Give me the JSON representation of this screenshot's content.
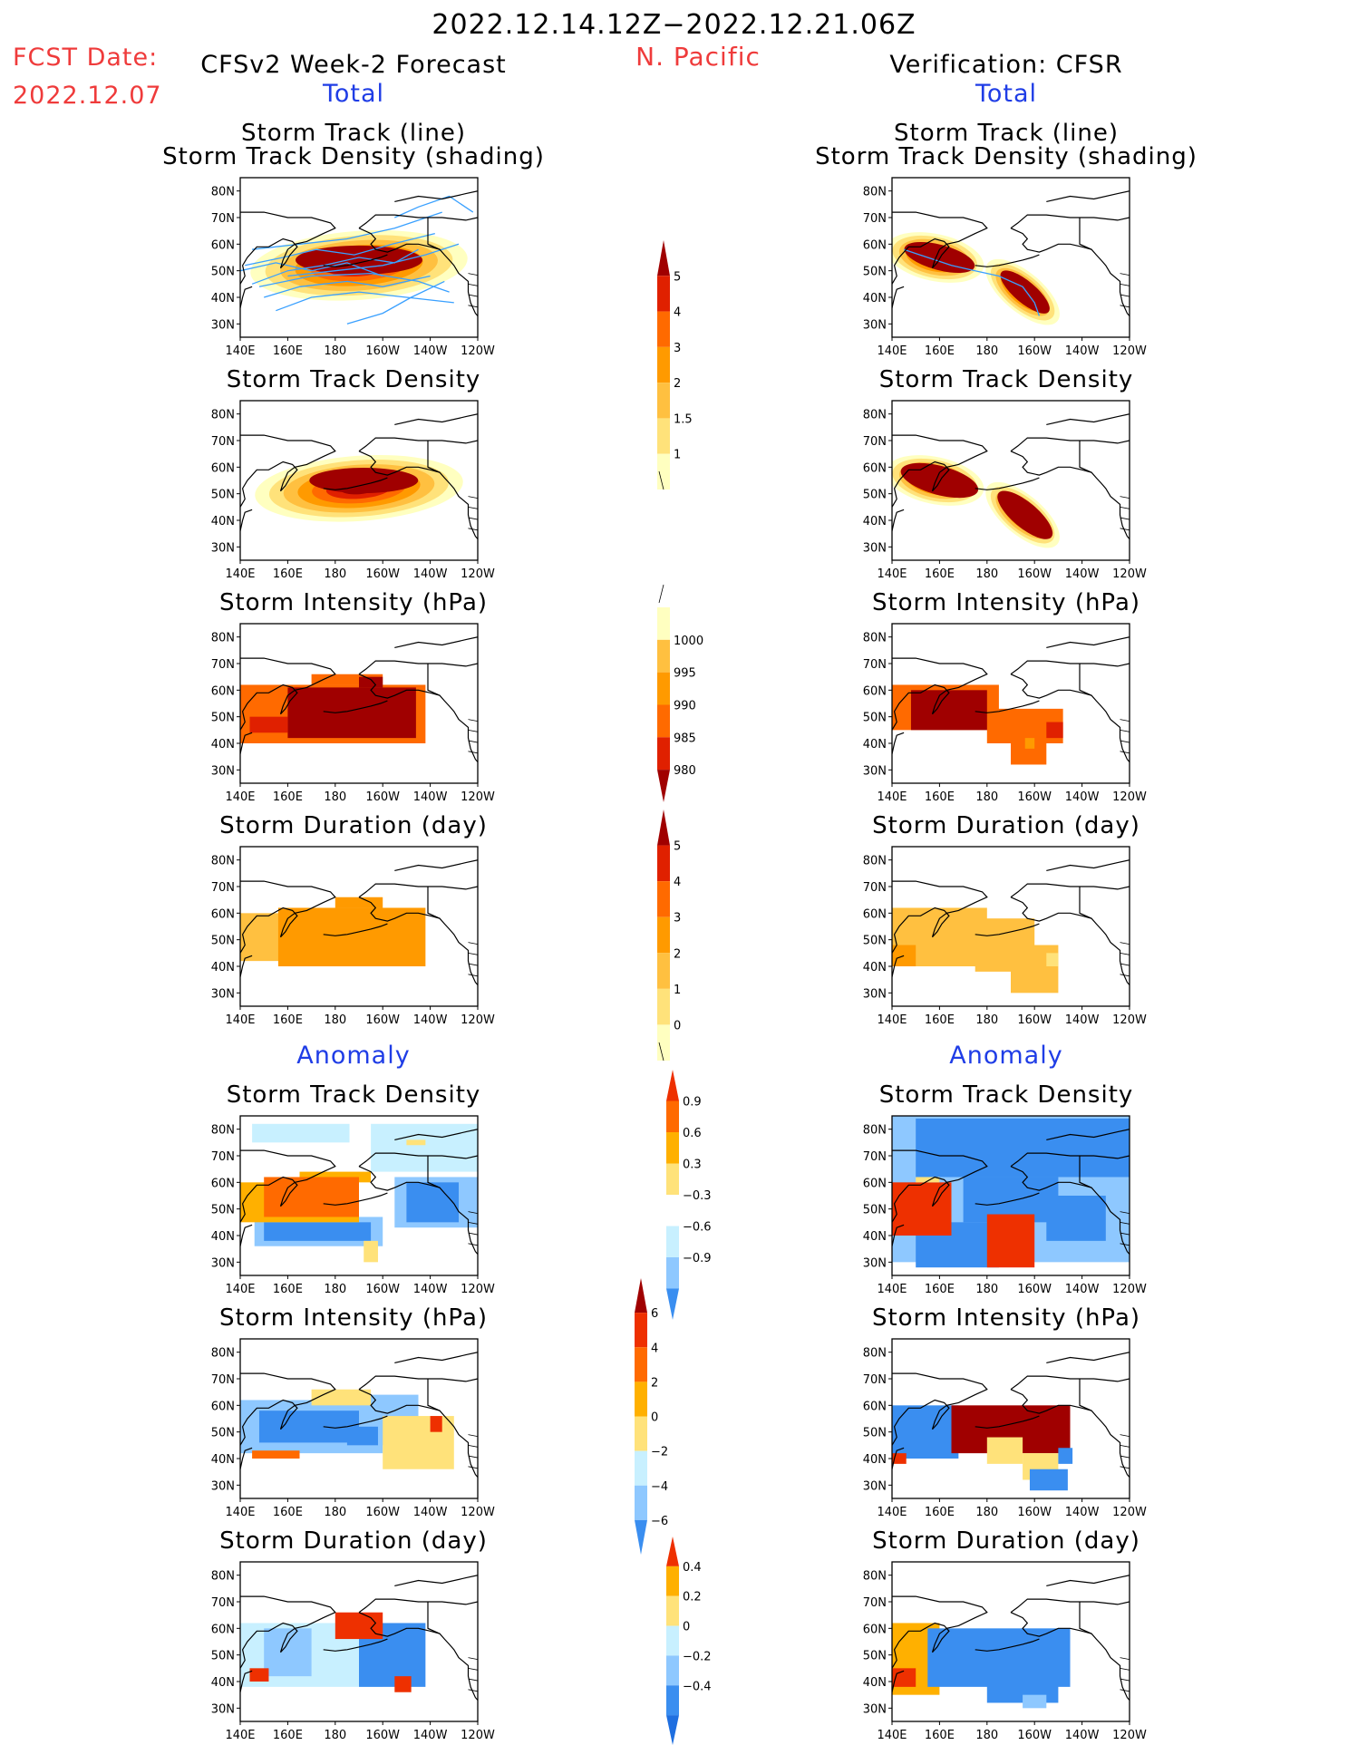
{
  "header": {
    "period": "2022.12.14.12Z−2022.12.21.06Z",
    "region": "N. Pacific",
    "fcst_label": "FCST Date:",
    "fcst_date": "2022.12.07",
    "left_title": "CFSv2 Week-2 Forecast",
    "right_title": "Verification: CFSR",
    "total_label": "Total",
    "anomaly_label": "Anomaly"
  },
  "panel_titles": {
    "track_line": "Storm Track (line)",
    "track_shading": "Storm Track Density (shading)",
    "density": "Storm Track Density",
    "intensity": "Storm Intensity (hPa)",
    "duration": "Storm Duration (day)"
  },
  "axes": {
    "lat_ticks": [
      "80N",
      "70N",
      "60N",
      "50N",
      "40N",
      "30N"
    ],
    "lon_ticks": [
      "140E",
      "160E",
      "180",
      "160W",
      "140W",
      "120W"
    ]
  },
  "colors": {
    "warm": [
      "#ffffc0",
      "#ffe27a",
      "#ffc040",
      "#ff9a00",
      "#ff6a00",
      "#e02000",
      "#a00000"
    ],
    "cool_anom": [
      "#1f6fe0",
      "#3a8ef0",
      "#8ec8ff",
      "#c8f0ff"
    ],
    "warm_anom": [
      "#ffe27a",
      "#ffb000",
      "#ff6a00",
      "#ee3000"
    ],
    "track_line": "#39a0ff"
  },
  "colorbars": {
    "density": {
      "labels": [
        "5",
        "4",
        "3",
        "2",
        "1.5",
        "1"
      ]
    },
    "intensity": {
      "labels": [
        "1000",
        "995",
        "990",
        "985",
        "980"
      ]
    },
    "duration": {
      "labels": [
        "5",
        "4",
        "3",
        "2",
        "1",
        "0"
      ]
    },
    "density_anom": {
      "labels": [
        "0.9",
        "0.6",
        "0.3",
        "−0.3",
        "−0.6",
        "−0.9"
      ]
    },
    "intensity_anom": {
      "labels": [
        "6",
        "4",
        "2",
        "0",
        "−2",
        "−4",
        "−6"
      ]
    },
    "duration_anom": {
      "labels": [
        "0.4",
        "0.2",
        "0",
        "−0.2",
        "−0.4"
      ]
    }
  }
}
